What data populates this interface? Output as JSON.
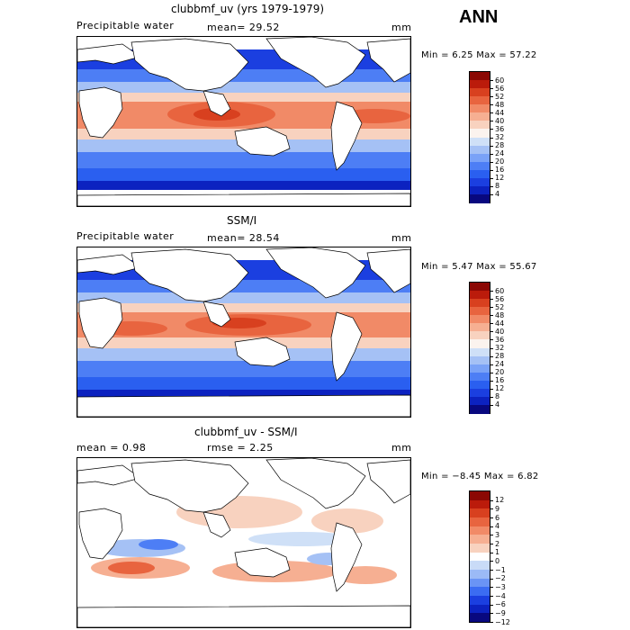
{
  "season": "ANN",
  "colors": {
    "abs_scale": [
      "#08087f",
      "#0c22c0",
      "#1b3fe0",
      "#2a5ff0",
      "#4d7ef5",
      "#7aa2f7",
      "#a5c1f5",
      "#cfe0f7",
      "#fbf3ee",
      "#f8d2bf",
      "#f6af92",
      "#f18a67",
      "#e8643f",
      "#d8401f",
      "#bb1b0b",
      "#8b0804"
    ],
    "diff_scale": [
      "#08087f",
      "#0c22c0",
      "#1b3fe0",
      "#3b6cf2",
      "#6a94f5",
      "#9bbaf6",
      "#c9dbf7",
      "#ffffff",
      "#f8d2bf",
      "#f6af92",
      "#f18a67",
      "#e8643f",
      "#d8401f",
      "#bb1b0b",
      "#8b0804"
    ]
  },
  "panels": [
    {
      "title": "clubbmf_uv (yrs 1979-1979)",
      "field": "Precipitable water",
      "stat": "mean=   29.52",
      "units": "mm",
      "minmax": "Min =    6.25  Max =  57.22",
      "colorbar": [
        "60",
        "56",
        "52",
        "48",
        "44",
        "40",
        "36",
        "32",
        "28",
        "24",
        "20",
        "16",
        "12",
        "8",
        "4"
      ]
    },
    {
      "title": "SSM/I",
      "field": "Precipitable water",
      "stat": "mean=   28.54",
      "units": "mm",
      "minmax": "Min =    5.47  Max =  55.67",
      "colorbar": [
        "60",
        "56",
        "52",
        "48",
        "44",
        "40",
        "36",
        "32",
        "28",
        "24",
        "20",
        "16",
        "12",
        "8",
        "4"
      ]
    },
    {
      "title": "clubbmf_uv - SSM/I",
      "field": "mean =    0.98",
      "stat": "rmse =    2.25",
      "units": "mm",
      "minmax": "Min =  −8.45  Max =    6.82",
      "colorbar": [
        "12",
        "9",
        "6",
        "4",
        "3",
        "2",
        "1",
        "0",
        "−1",
        "−2",
        "−3",
        "−4",
        "−6",
        "−9",
        "−12"
      ]
    }
  ]
}
